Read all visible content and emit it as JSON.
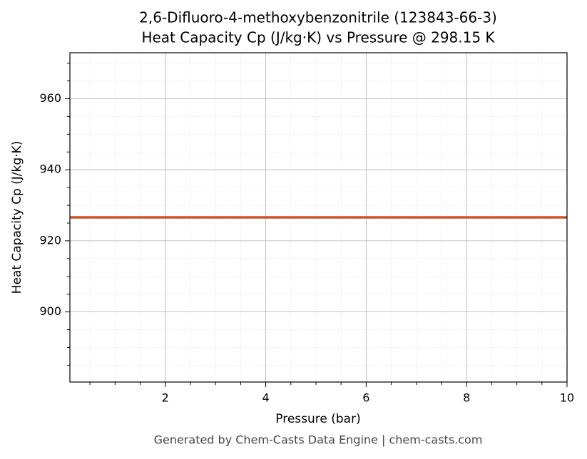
{
  "chart_data": {
    "type": "line",
    "title": "2,6-Difluoro-4-methoxybenzonitrile (123843-66-3)",
    "subtitle": "Heat Capacity Cp (J/kg·K) vs Pressure @ 298.15 K",
    "x_label": "Pressure (bar)",
    "y_label": "Heat Capacity Cp (J/kg·K)",
    "footer": "Generated by Chem-Casts Data Engine | chem-casts.com",
    "x": [
      0.1,
      10
    ],
    "series": [
      {
        "color": "#c8552b",
        "values": [
          926.6,
          926.6
        ]
      }
    ],
    "xlim": [
      0.1,
      10
    ],
    "xticks": [
      2,
      4,
      6,
      8,
      10
    ],
    "xminorticks": [
      0.5,
      1,
      1.5,
      2.5,
      3,
      3.5,
      4.5,
      5,
      5.5,
      6.5,
      7,
      7.5,
      8.5,
      9,
      9.5
    ],
    "ylim": [
      880.27,
      972.93
    ],
    "yticks": [
      900,
      920,
      940,
      960
    ],
    "yminorticks": [
      885,
      890,
      895,
      905,
      910,
      915,
      925,
      930,
      935,
      945,
      950,
      955,
      965,
      970
    ],
    "grid": true
  }
}
